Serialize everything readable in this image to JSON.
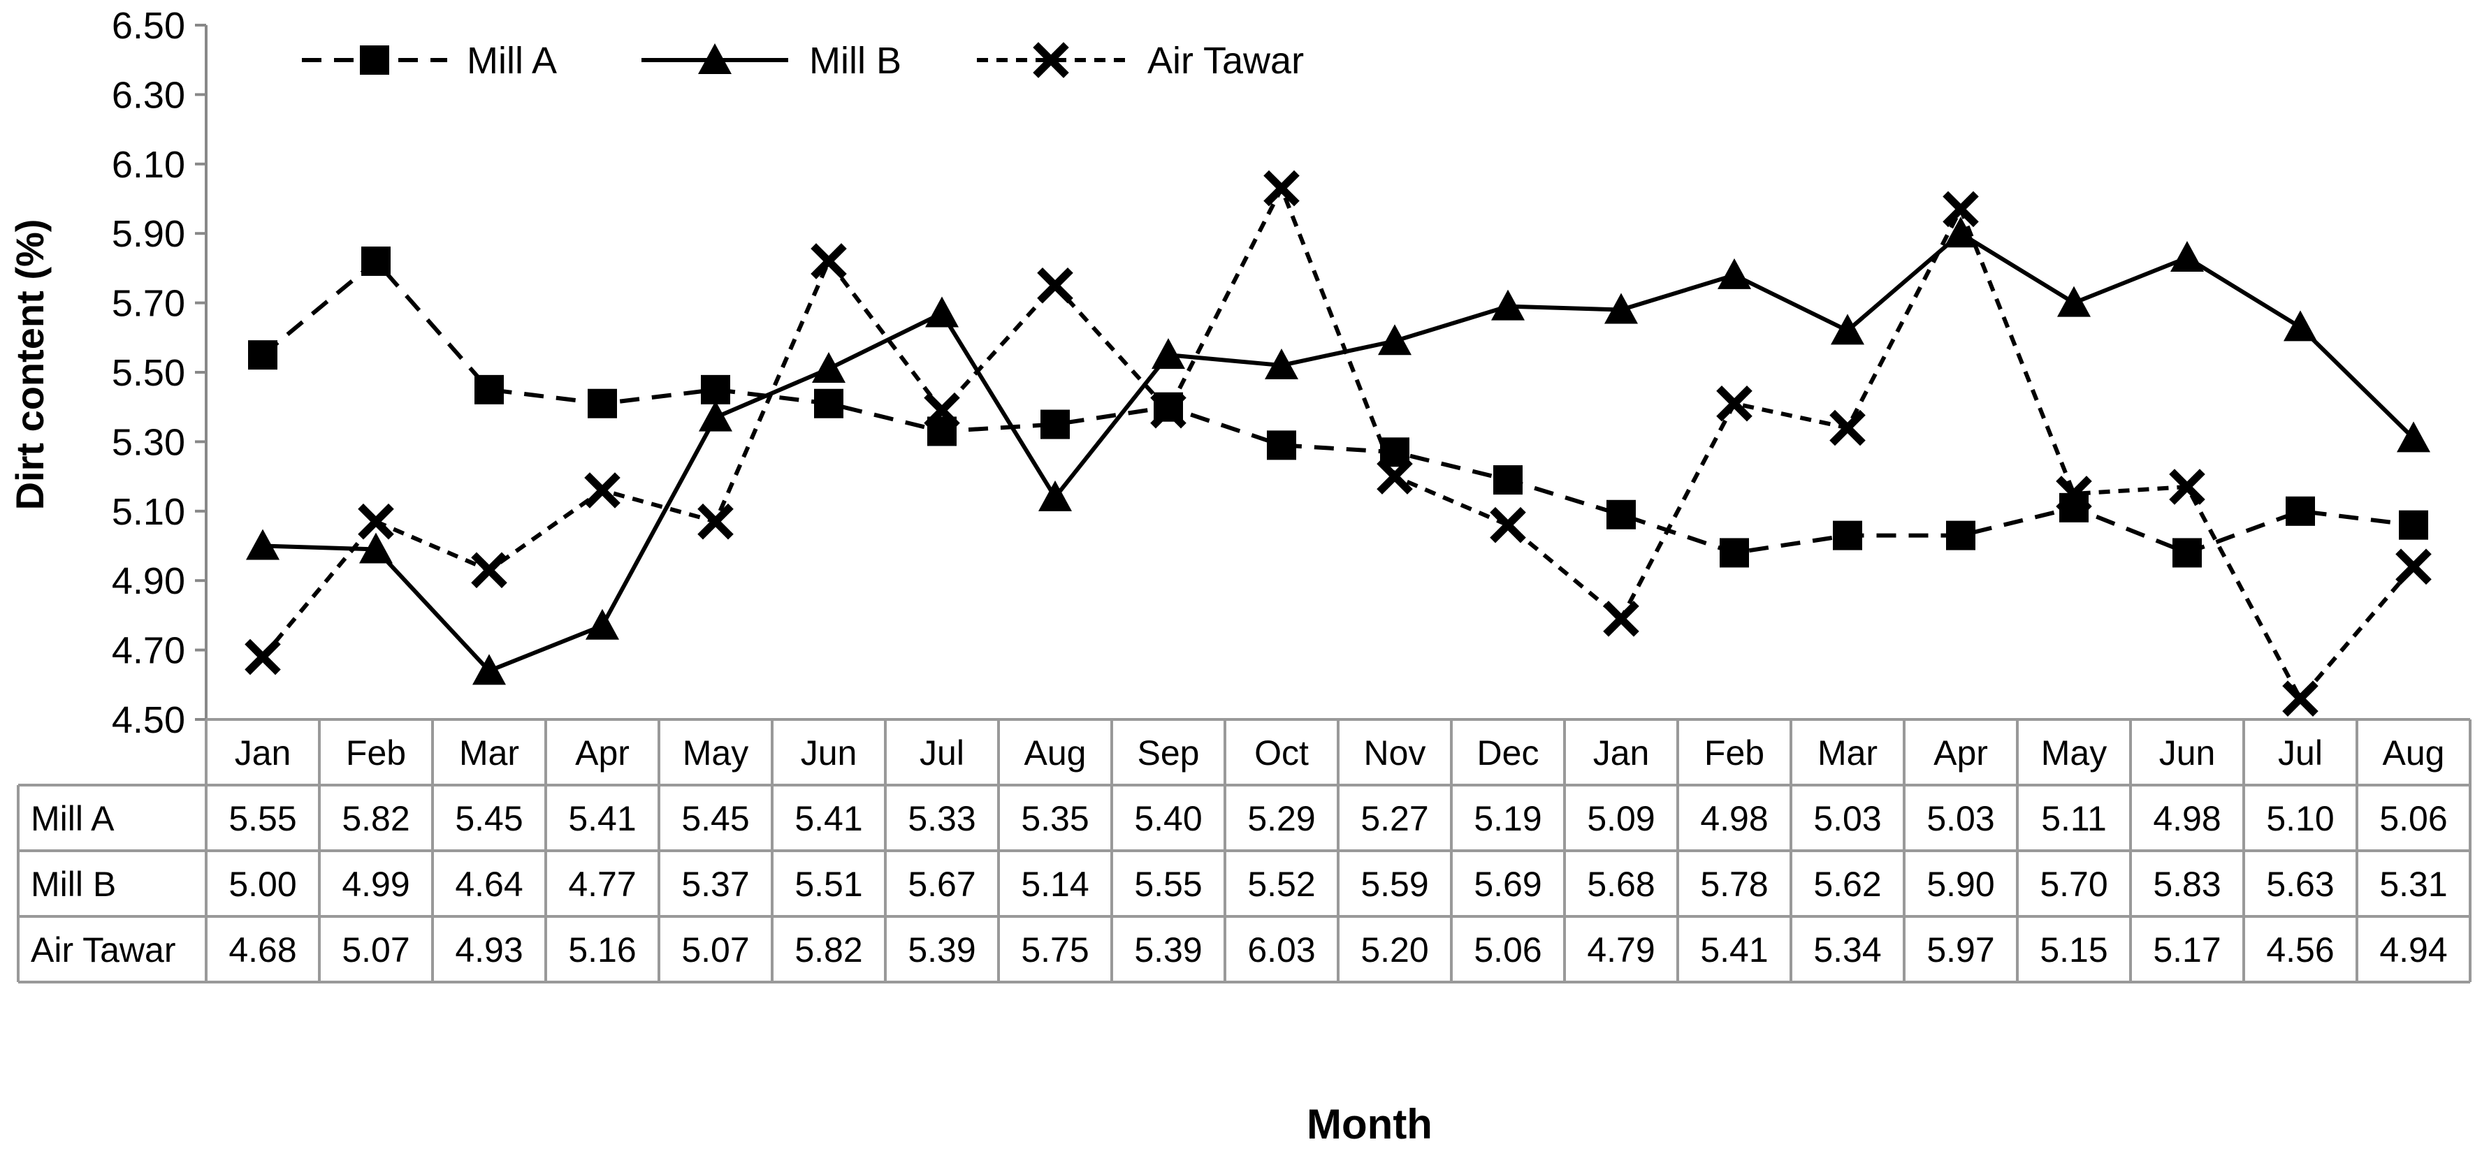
{
  "chart_data": {
    "type": "line",
    "title": "",
    "xlabel": "Month",
    "ylabel": "Dirt content (%)",
    "ylim": [
      4.5,
      6.5
    ],
    "yticks": [
      "4.50",
      "4.70",
      "4.90",
      "5.10",
      "5.30",
      "5.50",
      "5.70",
      "5.90",
      "6.10",
      "6.30",
      "6.50"
    ],
    "grid": false,
    "legend": "top-left",
    "data_table": true,
    "categories": [
      "Jan",
      "Feb",
      "Mar",
      "Apr",
      "May",
      "Jun",
      "Jul",
      "Aug",
      "Sep",
      "Oct",
      "Nov",
      "Dec",
      "Jan",
      "Feb",
      "Mar",
      "Apr",
      "May",
      "Jun",
      "Jul",
      "Aug"
    ],
    "series": [
      {
        "name": "Mill A",
        "marker": "square",
        "line_style": "dashed",
        "values": [
          5.55,
          5.82,
          5.45,
          5.41,
          5.45,
          5.41,
          5.33,
          5.35,
          5.4,
          5.29,
          5.27,
          5.19,
          5.09,
          4.98,
          5.03,
          5.03,
          5.11,
          4.98,
          5.1,
          5.06
        ],
        "labels": [
          "5.55",
          "5.82",
          "5.45",
          "5.41",
          "5.45",
          "5.41",
          "5.33",
          "5.35",
          "5.40",
          "5.29",
          "5.27",
          "5.19",
          "5.09",
          "4.98",
          "5.03",
          "5.03",
          "5.11",
          "4.98",
          "5.10",
          "5.06"
        ]
      },
      {
        "name": "Mill B",
        "marker": "triangle",
        "line_style": "solid",
        "values": [
          5.0,
          4.99,
          4.64,
          4.77,
          5.37,
          5.51,
          5.67,
          5.14,
          5.55,
          5.52,
          5.59,
          5.69,
          5.68,
          5.78,
          5.62,
          5.9,
          5.7,
          5.83,
          5.63,
          5.31
        ],
        "labels": [
          "5.00",
          "4.99",
          "4.64",
          "4.77",
          "5.37",
          "5.51",
          "5.67",
          "5.14",
          "5.55",
          "5.52",
          "5.59",
          "5.69",
          "5.68",
          "5.78",
          "5.62",
          "5.90",
          "5.70",
          "5.83",
          "5.63",
          "5.31"
        ]
      },
      {
        "name": "Air Tawar",
        "marker": "x",
        "line_style": "short-dashed",
        "values": [
          4.68,
          5.07,
          4.93,
          5.16,
          5.07,
          5.82,
          5.39,
          5.75,
          5.39,
          6.03,
          5.2,
          5.06,
          4.79,
          5.41,
          5.34,
          5.97,
          5.15,
          5.17,
          4.56,
          4.94
        ],
        "labels": [
          "4.68",
          "5.07",
          "4.93",
          "5.16",
          "5.07",
          "5.82",
          "5.39",
          "5.75",
          "5.39",
          "6.03",
          "5.20",
          "5.06",
          "4.79",
          "5.41",
          "5.34",
          "5.97",
          "5.15",
          "5.17",
          "4.56",
          "4.94"
        ]
      }
    ]
  }
}
